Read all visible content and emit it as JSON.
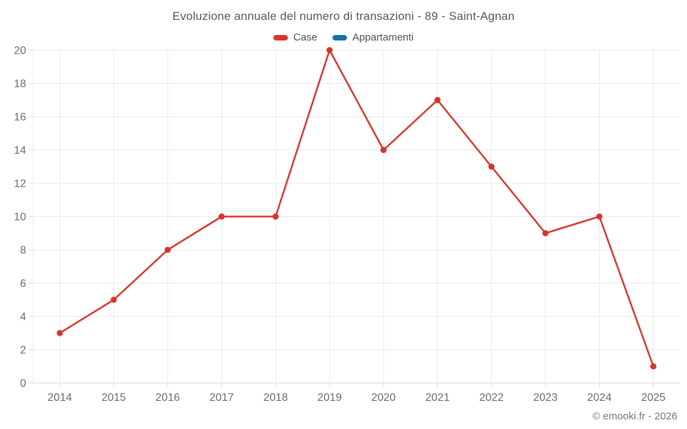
{
  "title": "Evoluzione annuale del numero di transazioni - 89 - Saint-Agnan",
  "footer": "© emooki.fr - 2026",
  "colors": {
    "case_red": "#d9342b",
    "appartamenti_blue": "#1272a6",
    "grid": "#e9e9e9",
    "axis": "#d8d8d8",
    "tick_text": "#6b6b6b"
  },
  "chart_data": {
    "type": "line",
    "title": "Evoluzione annuale del numero di transazioni - 89 - Saint-Agnan",
    "x": [
      "2014",
      "2015",
      "2016",
      "2017",
      "2018",
      "2019",
      "2020",
      "2021",
      "2022",
      "2023",
      "2024",
      "2025"
    ],
    "series": [
      {
        "name": "Case",
        "color": "#d9342b",
        "values": [
          3,
          5,
          8,
          10,
          10,
          20,
          14,
          17,
          13,
          9,
          10,
          1
        ]
      },
      {
        "name": "Appartamenti",
        "color": "#1272a6",
        "values": []
      }
    ],
    "xlabel": "",
    "ylabel": "",
    "ylim": [
      0,
      20
    ],
    "yticks": [
      0,
      2,
      4,
      6,
      8,
      10,
      12,
      14,
      16,
      18,
      20
    ],
    "grid": true,
    "legend_position": "top",
    "marker": "circle"
  }
}
